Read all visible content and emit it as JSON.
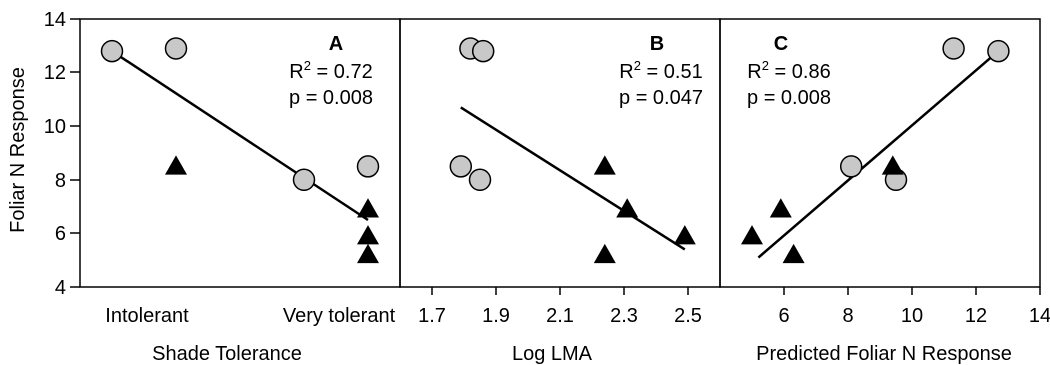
{
  "y_axis": {
    "label": "Foliar N Response",
    "ticks": [
      4,
      6,
      8,
      10,
      12,
      14
    ],
    "ylim": [
      4,
      14
    ]
  },
  "chart_data": [
    {
      "type": "scatter",
      "panel": "A",
      "xlabel": "Shade Tolerance",
      "x_tick_labels": [
        {
          "x": 1,
          "label": "Intolerant"
        },
        {
          "x": 5,
          "label": "Very tolerant"
        }
      ],
      "xlim": [
        0.5,
        5.5
      ],
      "ylim": [
        4,
        14
      ],
      "annotation": {
        "r2": "0.72",
        "p": "p = 0.008"
      },
      "series": [
        {
          "marker": "circle",
          "points": [
            [
              1,
              12.8
            ],
            [
              2,
              12.9
            ],
            [
              4,
              8.0
            ],
            [
              5,
              8.5
            ]
          ]
        },
        {
          "marker": "triangle",
          "points": [
            [
              2,
              8.5
            ],
            [
              5,
              6.9
            ],
            [
              5,
              5.9
            ],
            [
              5,
              5.2
            ]
          ]
        }
      ],
      "fit_line": [
        [
          1,
          12.8
        ],
        [
          5,
          6.5
        ]
      ]
    },
    {
      "type": "scatter",
      "panel": "B",
      "xlabel": "Log LMA",
      "x_ticks": [
        1.7,
        1.9,
        2.1,
        2.3,
        2.5
      ],
      "xlim": [
        1.6,
        2.6
      ],
      "ylim": [
        4,
        14
      ],
      "annotation": {
        "r2": "0.51",
        "p": "p = 0.047"
      },
      "series": [
        {
          "marker": "circle",
          "points": [
            [
              1.82,
              12.9
            ],
            [
              1.86,
              12.8
            ],
            [
              1.79,
              8.5
            ],
            [
              1.85,
              8.0
            ]
          ]
        },
        {
          "marker": "triangle",
          "points": [
            [
              2.24,
              8.5
            ],
            [
              2.31,
              6.9
            ],
            [
              2.49,
              5.9
            ],
            [
              2.24,
              5.2
            ]
          ]
        }
      ],
      "fit_line": [
        [
          1.79,
          10.7
        ],
        [
          2.49,
          5.4
        ]
      ]
    },
    {
      "type": "scatter",
      "panel": "C",
      "xlabel": "Predicted Foliar N Response",
      "x_ticks": [
        6,
        8,
        10,
        12,
        14
      ],
      "xlim": [
        4,
        14
      ],
      "ylim": [
        4,
        14
      ],
      "annotation": {
        "r2": "0.86",
        "p": "p = 0.008"
      },
      "series": [
        {
          "marker": "circle",
          "points": [
            [
              11.3,
              12.9
            ],
            [
              12.7,
              12.8
            ],
            [
              8.1,
              8.5
            ],
            [
              9.5,
              8.0
            ]
          ]
        },
        {
          "marker": "triangle",
          "points": [
            [
              9.4,
              8.5
            ],
            [
              5.9,
              6.9
            ],
            [
              5.0,
              5.9
            ],
            [
              6.3,
              5.2
            ]
          ]
        }
      ],
      "fit_line": [
        [
          5.2,
          5.1
        ],
        [
          12.6,
          12.7
        ]
      ]
    }
  ]
}
